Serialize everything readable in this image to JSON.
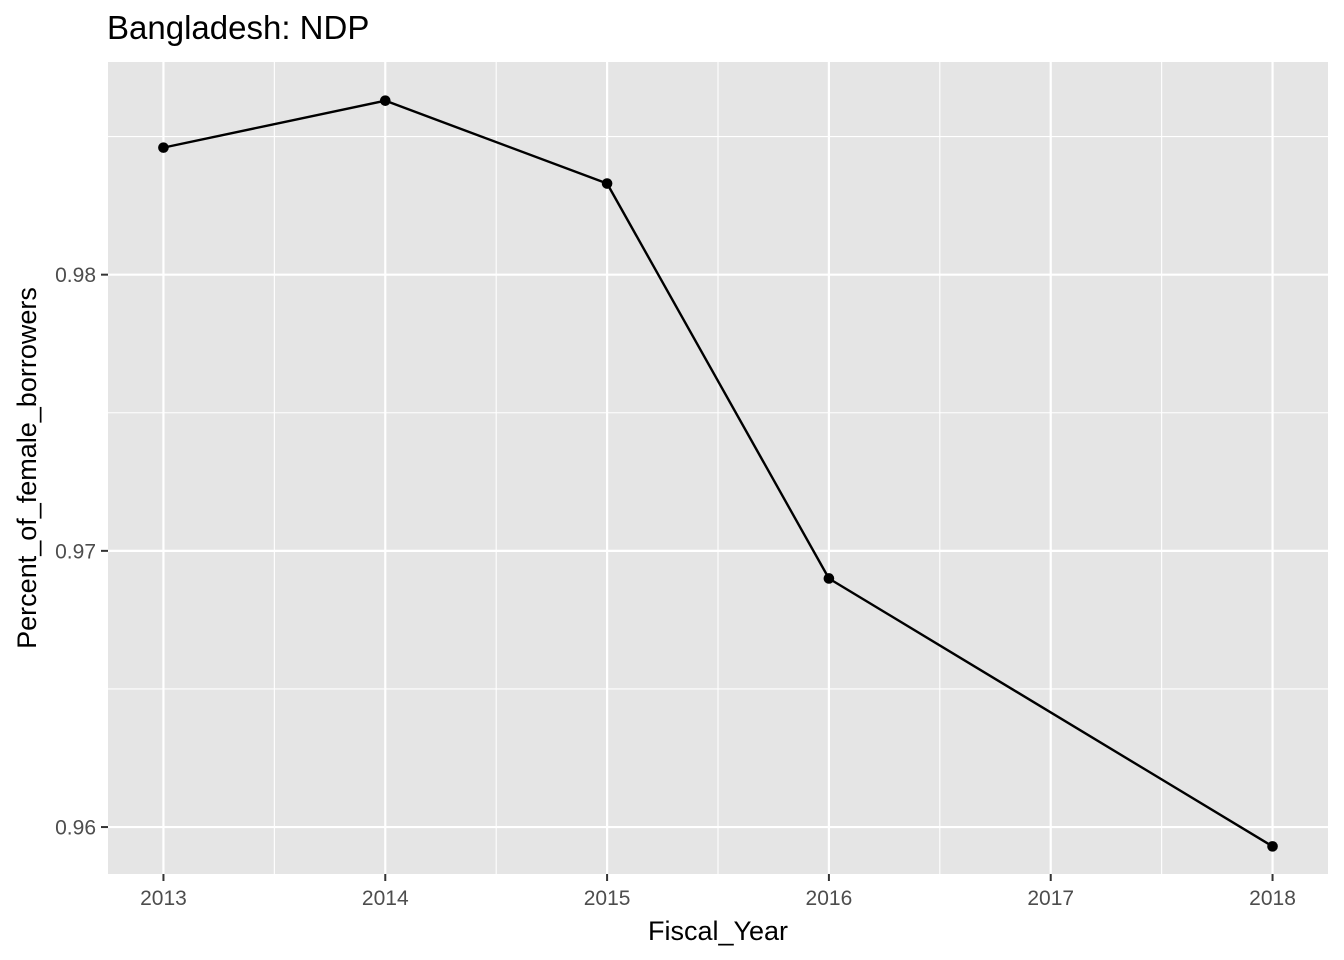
{
  "chart_data": {
    "type": "line",
    "title": "Bangladesh:  NDP",
    "xlabel": "Fiscal_Year",
    "ylabel": "Percent_of_female_borrowers",
    "x": [
      2013,
      2014,
      2015,
      2016,
      2017,
      2018
    ],
    "x_ticks": [
      "2013",
      "2014",
      "2015",
      "2016",
      "2017",
      "2018"
    ],
    "y_ticks": [
      "0.96",
      "0.97",
      "0.98"
    ],
    "xlim": [
      2012.75,
      2018.25
    ],
    "ylim": [
      0.9583,
      0.9877
    ],
    "series": [
      {
        "x": [
          2013,
          2014,
          2015,
          2016,
          2018
        ],
        "values": [
          0.9846,
          0.9863,
          0.9833,
          0.969,
          0.9593
        ]
      }
    ],
    "grid": true,
    "legend": "none",
    "colors": {
      "panel": "#e5e5e5",
      "grid": "#ffffff",
      "line": "#000000",
      "tick_text": "#4d4d4d"
    }
  }
}
